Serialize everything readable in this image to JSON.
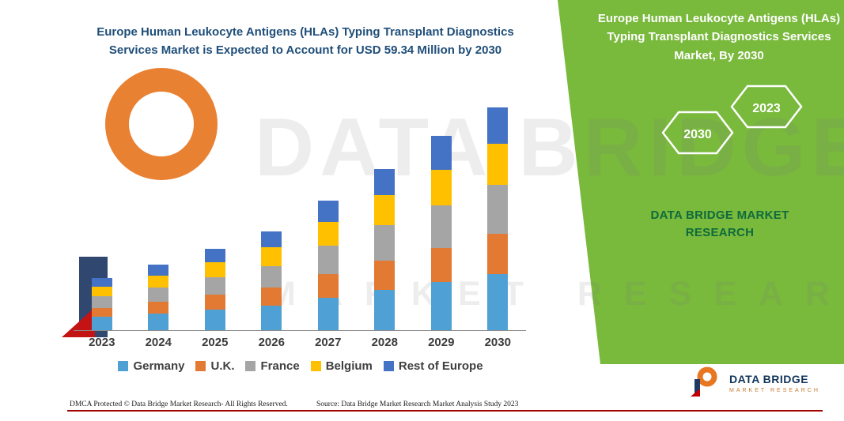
{
  "title": {
    "text": "Europe Human Leukocyte Antigens (HLAs) Typing Transplant Diagnostics Services Market is Expected to Account for USD 59.34 Million by 2030"
  },
  "right_panel": {
    "title": "Europe Human Leukocyte Antigens (HLAs) Typing Transplant Diagnostics Services Market, By 2030",
    "hex_left": "2030",
    "hex_right": "2023",
    "brand_text": "DATA BRIDGE MARKET RESEARCH",
    "bg_color": "#79B93C",
    "brand_text_color": "#0F6B3C"
  },
  "watermark": {
    "line1": "DATA BRIDGE",
    "line2": "MARKET RESEARCH"
  },
  "footer": {
    "dmca": "DMCA Protected © Data Bridge Market Research-  All Rights Reserved.",
    "source": "Source: Data Bridge Market Research  Market Analysis Study 2023"
  },
  "brand_logo": {
    "name": "DATA BRIDGE",
    "tagline": "MARKET RESEARCH"
  },
  "colors": {
    "title_blue": "#1F4E79",
    "accent_green": "#79B93C",
    "bottom_line_red": "#A00000"
  },
  "chart_data": {
    "type": "bar",
    "stacked": true,
    "title": "Europe Human Leukocyte Antigens (HLAs) Typing Transplant Diagnostics Services Market (USD Million)",
    "categories": [
      "2023",
      "2024",
      "2025",
      "2026",
      "2027",
      "2028",
      "2029",
      "2030"
    ],
    "series": [
      {
        "name": "Germany",
        "color": "#4FA0D5",
        "values": [
          3.5,
          4.4,
          5.5,
          6.6,
          8.7,
          10.8,
          12.8,
          14.9
        ]
      },
      {
        "name": "U.K.",
        "color": "#E27A33",
        "values": [
          2.5,
          3.1,
          3.9,
          4.7,
          6.2,
          7.7,
          9.2,
          10.7
        ]
      },
      {
        "name": "France",
        "color": "#A5A5A5",
        "values": [
          3.0,
          3.9,
          4.8,
          5.8,
          7.6,
          9.4,
          11.2,
          13.1
        ]
      },
      {
        "name": "Belgium",
        "color": "#FFC000",
        "values": [
          2.6,
          3.2,
          4.0,
          4.9,
          6.4,
          8.0,
          9.5,
          11.0
        ]
      },
      {
        "name": "Rest of Europe",
        "color": "#4472C4",
        "values": [
          2.3,
          2.9,
          3.5,
          4.3,
          5.6,
          7.0,
          9.2,
          9.64
        ]
      }
    ],
    "totals_estimated": [
      13.9,
      17.5,
      21.7,
      26.3,
      34.5,
      42.9,
      51.9,
      59.34
    ],
    "highlight_value_2030": "USD 59.34 Million",
    "xlabel": "",
    "ylabel": "",
    "legend_position": "bottom",
    "grid": false
  }
}
